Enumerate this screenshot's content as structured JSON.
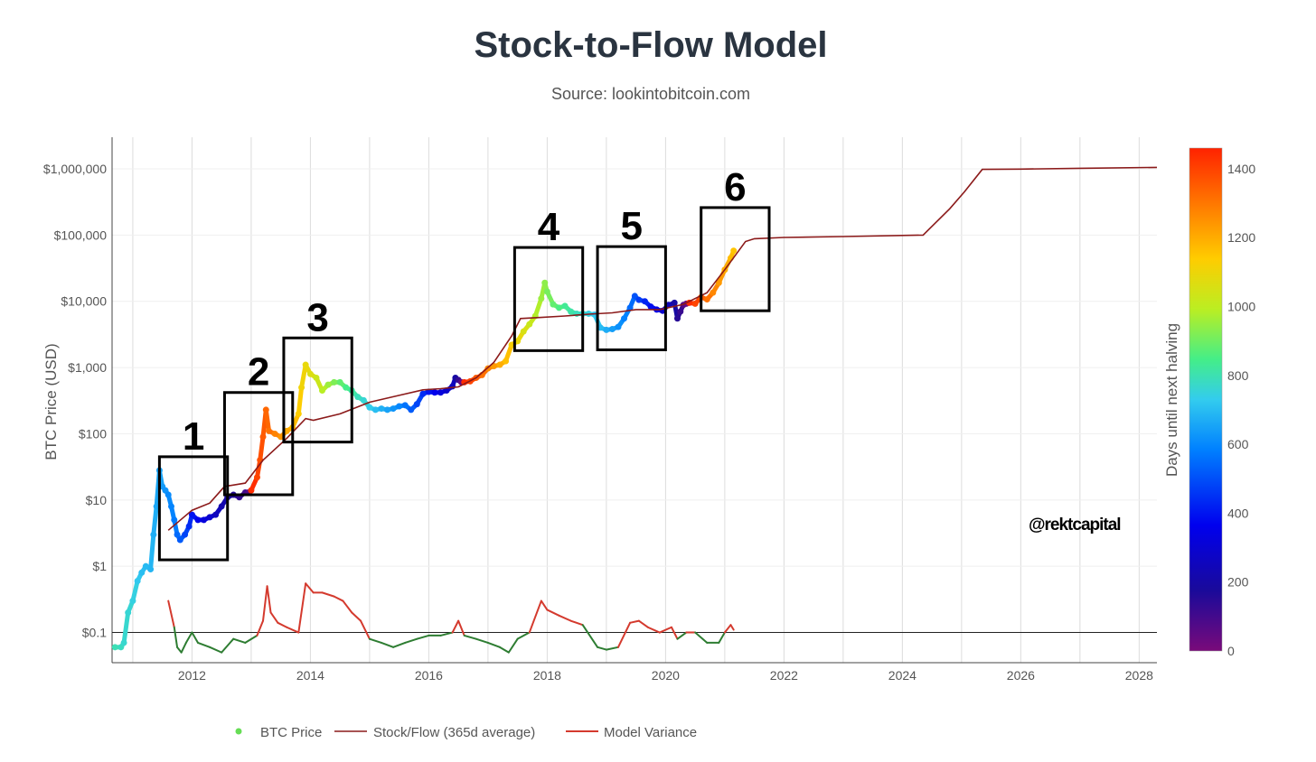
{
  "chart_data": {
    "type": "scatter",
    "title": "Stock-to-Flow Model",
    "subtitle": "Source: lookintobitcoin.com",
    "ylabel": "BTC Price (USD)",
    "xlabel": "",
    "y_scale": "log",
    "ylim": [
      0.035,
      3000000
    ],
    "xlim": [
      2010.65,
      2028.3
    ],
    "grid": true,
    "x_ticks": [
      {
        "value": 2012,
        "label": "2012"
      },
      {
        "value": 2014,
        "label": "2014"
      },
      {
        "value": 2016,
        "label": "2016"
      },
      {
        "value": 2018,
        "label": "2018"
      },
      {
        "value": 2020,
        "label": "2020"
      },
      {
        "value": 2022,
        "label": "2022"
      },
      {
        "value": 2024,
        "label": "2024"
      },
      {
        "value": 2026,
        "label": "2026"
      },
      {
        "value": 2028,
        "label": "2028"
      }
    ],
    "y_ticks": [
      {
        "value": 1000000,
        "label": "$1,000,000"
      },
      {
        "value": 100000,
        "label": "$100,000"
      },
      {
        "value": 10000,
        "label": "$10,000"
      },
      {
        "value": 1000,
        "label": "$1,000"
      },
      {
        "value": 100,
        "label": "$100"
      },
      {
        "value": 10,
        "label": "$10"
      },
      {
        "value": 1,
        "label": "$1"
      },
      {
        "value": 0.1,
        "label": "$0.1"
      }
    ],
    "reference_line": 0.1,
    "colorbar": {
      "title": "Days until next halving",
      "min": 0,
      "max": 1460,
      "ticks": [
        0,
        200,
        400,
        600,
        800,
        1000,
        1200,
        1400
      ],
      "colors": [
        "#7a0a7a",
        "#1a0a9a",
        "#0000ee",
        "#0080ff",
        "#33ccee",
        "#44ee88",
        "#bbee22",
        "#ffcc00",
        "#ff7f00",
        "#ff2200"
      ]
    },
    "series": [
      {
        "name": "BTC Price",
        "color": "#66dd55",
        "points": [
          [
            2010.7,
            0.06,
            740
          ],
          [
            2010.8,
            0.06,
            720
          ],
          [
            2010.85,
            0.07,
            700
          ],
          [
            2010.92,
            0.2,
            690
          ],
          [
            2011.0,
            0.3,
            670
          ],
          [
            2011.08,
            0.6,
            640
          ],
          [
            2011.15,
            0.8,
            620
          ],
          [
            2011.22,
            1.0,
            610
          ],
          [
            2011.3,
            0.9,
            600
          ],
          [
            2011.35,
            3,
            585
          ],
          [
            2011.4,
            8,
            570
          ],
          [
            2011.45,
            28,
            560
          ],
          [
            2011.5,
            16,
            545
          ],
          [
            2011.55,
            14,
            530
          ],
          [
            2011.6,
            12,
            510
          ],
          [
            2011.65,
            8,
            495
          ],
          [
            2011.7,
            5,
            480
          ],
          [
            2011.75,
            3,
            460
          ],
          [
            2011.8,
            2.5,
            440
          ],
          [
            2011.88,
            3,
            410
          ],
          [
            2011.95,
            4,
            380
          ],
          [
            2012.0,
            6,
            350
          ],
          [
            2012.1,
            5,
            320
          ],
          [
            2012.2,
            5,
            290
          ],
          [
            2012.3,
            5.5,
            260
          ],
          [
            2012.4,
            6,
            230
          ],
          [
            2012.5,
            8,
            200
          ],
          [
            2012.6,
            11,
            170
          ],
          [
            2012.7,
            12,
            145
          ],
          [
            2012.8,
            11,
            120
          ],
          [
            2012.9,
            13,
            95
          ],
          [
            2012.95,
            13,
            70
          ],
          [
            2013.0,
            14,
            1440
          ],
          [
            2013.1,
            22,
            1400
          ],
          [
            2013.15,
            40,
            1380
          ],
          [
            2013.2,
            90,
            1360
          ],
          [
            2013.25,
            230,
            1340
          ],
          [
            2013.3,
            110,
            1320
          ],
          [
            2013.4,
            100,
            1290
          ],
          [
            2013.5,
            90,
            1250
          ],
          [
            2013.6,
            110,
            1210
          ],
          [
            2013.7,
            125,
            1170
          ],
          [
            2013.8,
            200,
            1130
          ],
          [
            2013.85,
            500,
            1100
          ],
          [
            2013.92,
            1100,
            1080
          ],
          [
            2014.0,
            800,
            1050
          ],
          [
            2014.1,
            700,
            1010
          ],
          [
            2014.2,
            450,
            970
          ],
          [
            2014.3,
            550,
            930
          ],
          [
            2014.4,
            600,
            890
          ],
          [
            2014.5,
            600,
            850
          ],
          [
            2014.6,
            500,
            810
          ],
          [
            2014.7,
            450,
            770
          ],
          [
            2014.8,
            360,
            730
          ],
          [
            2014.9,
            320,
            690
          ],
          [
            2015.0,
            250,
            650
          ],
          [
            2015.1,
            230,
            620
          ],
          [
            2015.2,
            240,
            590
          ],
          [
            2015.3,
            230,
            560
          ],
          [
            2015.4,
            240,
            530
          ],
          [
            2015.5,
            260,
            500
          ],
          [
            2015.6,
            270,
            470
          ],
          [
            2015.7,
            230,
            440
          ],
          [
            2015.8,
            280,
            410
          ],
          [
            2015.9,
            400,
            380
          ],
          [
            2016.0,
            430,
            350
          ],
          [
            2016.1,
            420,
            320
          ],
          [
            2016.2,
            420,
            290
          ],
          [
            2016.3,
            450,
            260
          ],
          [
            2016.4,
            520,
            230
          ],
          [
            2016.45,
            700,
            180
          ],
          [
            2016.5,
            650,
            120
          ],
          [
            2016.55,
            600,
            40
          ],
          [
            2016.6,
            600,
            1440
          ],
          [
            2016.7,
            620,
            1400
          ],
          [
            2016.8,
            700,
            1360
          ],
          [
            2016.9,
            770,
            1320
          ],
          [
            2017.0,
            970,
            1280
          ],
          [
            2017.1,
            1050,
            1240
          ],
          [
            2017.2,
            1100,
            1200
          ],
          [
            2017.3,
            1250,
            1160
          ],
          [
            2017.4,
            2200,
            1120
          ],
          [
            2017.5,
            2500,
            1080
          ],
          [
            2017.6,
            3500,
            1040
          ],
          [
            2017.7,
            4500,
            1000
          ],
          [
            2017.8,
            6000,
            960
          ],
          [
            2017.9,
            11000,
            930
          ],
          [
            2017.96,
            19000,
            910
          ],
          [
            2018.0,
            14000,
            880
          ],
          [
            2018.1,
            9000,
            850
          ],
          [
            2018.2,
            8000,
            820
          ],
          [
            2018.3,
            8500,
            790
          ],
          [
            2018.4,
            7000,
            760
          ],
          [
            2018.5,
            6500,
            730
          ],
          [
            2018.6,
            6500,
            700
          ],
          [
            2018.7,
            6500,
            670
          ],
          [
            2018.8,
            6300,
            640
          ],
          [
            2018.9,
            4000,
            610
          ],
          [
            2019.0,
            3700,
            580
          ],
          [
            2019.1,
            3800,
            550
          ],
          [
            2019.2,
            4100,
            520
          ],
          [
            2019.3,
            5500,
            490
          ],
          [
            2019.4,
            8000,
            460
          ],
          [
            2019.48,
            12000,
            430
          ],
          [
            2019.55,
            10500,
            400
          ],
          [
            2019.65,
            10000,
            370
          ],
          [
            2019.75,
            8300,
            340
          ],
          [
            2019.85,
            7500,
            300
          ],
          [
            2019.95,
            7200,
            260
          ],
          [
            2020.05,
            8800,
            220
          ],
          [
            2020.15,
            9500,
            180
          ],
          [
            2020.2,
            5500,
            140
          ],
          [
            2020.25,
            7000,
            110
          ],
          [
            2020.3,
            8800,
            70
          ],
          [
            2020.35,
            9200,
            30
          ],
          [
            2020.4,
            9500,
            1440
          ],
          [
            2020.5,
            9200,
            1400
          ],
          [
            2020.6,
            11500,
            1360
          ],
          [
            2020.7,
            10700,
            1320
          ],
          [
            2020.8,
            13500,
            1280
          ],
          [
            2020.9,
            19000,
            1240
          ],
          [
            2021.0,
            30000,
            1200
          ],
          [
            2021.1,
            45000,
            1170
          ],
          [
            2021.15,
            58000,
            1150
          ]
        ]
      },
      {
        "name": "Stock/Flow (365d average)",
        "color": "#8b1a1a",
        "points": [
          [
            2011.6,
            3.5
          ],
          [
            2012.0,
            7
          ],
          [
            2012.3,
            9
          ],
          [
            2012.55,
            16
          ],
          [
            2012.9,
            18
          ],
          [
            2013.2,
            40
          ],
          [
            2013.6,
            85
          ],
          [
            2013.92,
            170
          ],
          [
            2014.05,
            160
          ],
          [
            2014.5,
            200
          ],
          [
            2015.0,
            300
          ],
          [
            2015.5,
            380
          ],
          [
            2015.9,
            460
          ],
          [
            2016.2,
            480
          ],
          [
            2016.5,
            510
          ],
          [
            2016.8,
            700
          ],
          [
            2017.1,
            1200
          ],
          [
            2017.4,
            3000
          ],
          [
            2017.55,
            5500
          ],
          [
            2017.9,
            5700
          ],
          [
            2018.3,
            6000
          ],
          [
            2018.7,
            6400
          ],
          [
            2019.1,
            6700
          ],
          [
            2019.5,
            7500
          ],
          [
            2019.9,
            7500
          ],
          [
            2020.3,
            9000
          ],
          [
            2020.7,
            13500
          ],
          [
            2021.0,
            30000
          ],
          [
            2021.35,
            80000
          ],
          [
            2021.5,
            88000
          ],
          [
            2022.0,
            92000
          ],
          [
            2023.0,
            95000
          ],
          [
            2024.35,
            100000
          ],
          [
            2024.8,
            250000
          ],
          [
            2025.05,
            450000
          ],
          [
            2025.35,
            980000
          ],
          [
            2026.0,
            990000
          ],
          [
            2027.0,
            1020000
          ],
          [
            2028.3,
            1050000
          ]
        ]
      },
      {
        "name": "Model Variance",
        "color_above": "#d43a2e",
        "color_below": "#2e7d32",
        "points": [
          [
            2011.6,
            0.3
          ],
          [
            2011.7,
            0.12
          ],
          [
            2011.75,
            0.06
          ],
          [
            2011.82,
            0.05
          ],
          [
            2011.9,
            0.07
          ],
          [
            2012.0,
            0.1
          ],
          [
            2012.1,
            0.07
          ],
          [
            2012.3,
            0.06
          ],
          [
            2012.5,
            0.05
          ],
          [
            2012.7,
            0.08
          ],
          [
            2012.9,
            0.07
          ],
          [
            2013.1,
            0.09
          ],
          [
            2013.2,
            0.15
          ],
          [
            2013.27,
            0.5
          ],
          [
            2013.33,
            0.2
          ],
          [
            2013.45,
            0.14
          ],
          [
            2013.6,
            0.12
          ],
          [
            2013.8,
            0.1
          ],
          [
            2013.92,
            0.55
          ],
          [
            2014.05,
            0.4
          ],
          [
            2014.2,
            0.4
          ],
          [
            2014.4,
            0.35
          ],
          [
            2014.55,
            0.3
          ],
          [
            2014.7,
            0.2
          ],
          [
            2014.85,
            0.15
          ],
          [
            2015.0,
            0.08
          ],
          [
            2015.2,
            0.07
          ],
          [
            2015.4,
            0.06
          ],
          [
            2015.6,
            0.07
          ],
          [
            2015.8,
            0.08
          ],
          [
            2016.0,
            0.09
          ],
          [
            2016.2,
            0.09
          ],
          [
            2016.4,
            0.1
          ],
          [
            2016.5,
            0.15
          ],
          [
            2016.6,
            0.09
          ],
          [
            2016.8,
            0.08
          ],
          [
            2017.0,
            0.07
          ],
          [
            2017.2,
            0.06
          ],
          [
            2017.35,
            0.05
          ],
          [
            2017.5,
            0.08
          ],
          [
            2017.7,
            0.1
          ],
          [
            2017.9,
            0.3
          ],
          [
            2018.0,
            0.22
          ],
          [
            2018.2,
            0.18
          ],
          [
            2018.4,
            0.15
          ],
          [
            2018.6,
            0.13
          ],
          [
            2018.85,
            0.06
          ],
          [
            2019.0,
            0.055
          ],
          [
            2019.2,
            0.06
          ],
          [
            2019.4,
            0.14
          ],
          [
            2019.55,
            0.15
          ],
          [
            2019.7,
            0.12
          ],
          [
            2019.9,
            0.1
          ],
          [
            2020.1,
            0.12
          ],
          [
            2020.2,
            0.08
          ],
          [
            2020.35,
            0.1
          ],
          [
            2020.5,
            0.1
          ],
          [
            2020.7,
            0.07
          ],
          [
            2020.9,
            0.07
          ],
          [
            2021.0,
            0.1
          ],
          [
            2021.1,
            0.13
          ],
          [
            2021.15,
            0.11
          ]
        ]
      }
    ],
    "annotations": [
      {
        "label": "1",
        "x0": 2011.45,
        "x1": 2012.6,
        "y_low": 1.25,
        "y_high": 45
      },
      {
        "label": "2",
        "x0": 2012.55,
        "x1": 2013.7,
        "y_low": 12,
        "y_high": 420
      },
      {
        "label": "3",
        "x0": 2013.55,
        "x1": 2014.7,
        "y_low": 75,
        "y_high": 2800
      },
      {
        "label": "4",
        "x0": 2017.45,
        "x1": 2018.6,
        "y_low": 1800,
        "y_high": 65000
      },
      {
        "label": "5",
        "x0": 2018.85,
        "x1": 2020.0,
        "y_low": 1850,
        "y_high": 67000
      },
      {
        "label": "6",
        "x0": 2020.6,
        "x1": 2021.75,
        "y_low": 7200,
        "y_high": 260000
      }
    ],
    "watermark": "@rektcapital",
    "legend_position": "bottom"
  }
}
